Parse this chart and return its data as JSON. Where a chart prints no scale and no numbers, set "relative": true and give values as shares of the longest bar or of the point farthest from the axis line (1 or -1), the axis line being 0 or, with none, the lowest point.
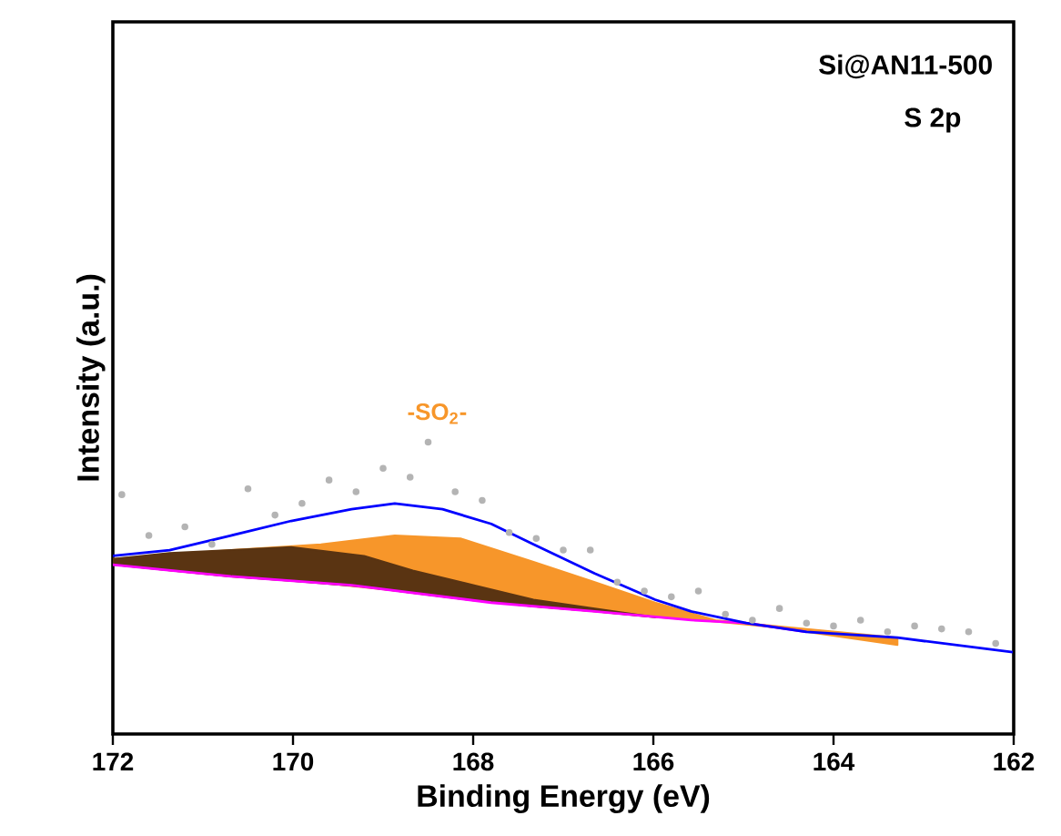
{
  "chart_data": {
    "type": "line",
    "relative": true,
    "xlabel": "Binding Energy (eV)",
    "ylabel": "Intensity (a.u.)",
    "xlim": [
      172,
      162
    ],
    "xticks": [
      172,
      170,
      168,
      166,
      164,
      162
    ],
    "grid": false,
    "tick_labels": "x",
    "annotations": [
      "Si@AN11-500",
      "S 2p",
      "-SO$_{2}$-"
    ],
    "series": [
      {
        "type": "scatter",
        "color": "#b4b4b4",
        "x": [
          171.9,
          171.6,
          171.2,
          170.9,
          170.5,
          170.2,
          169.9,
          169.6,
          169.3,
          169.0,
          168.7,
          168.5,
          168.2,
          167.9,
          167.6,
          167.3,
          167.0,
          166.7,
          166.4,
          166.1,
          165.8,
          165.5,
          165.2,
          164.9,
          164.6,
          164.3,
          164.0,
          163.7,
          163.4,
          163.1,
          162.8,
          162.5,
          162.2
        ],
        "values": [
          0.82,
          0.68,
          0.71,
          0.65,
          0.84,
          0.75,
          0.79,
          0.87,
          0.83,
          0.91,
          0.88,
          1,
          0.83,
          0.8,
          0.69,
          0.67,
          0.63,
          0.63,
          0.52,
          0.49,
          0.47,
          0.49,
          0.41,
          0.39,
          0.43,
          0.38,
          0.37,
          0.39,
          0.35,
          0.37,
          0.36,
          0.35,
          0.31
        ]
      },
      {
        "type": "area",
        "color": "#f7962a",
        "x": [
          172,
          170.69,
          169.69,
          168.87,
          168.14,
          167.33,
          166.65,
          165.98,
          165.31,
          164.64,
          163.29
        ],
        "values": [
          0.6,
          0.63,
          0.65,
          0.68,
          0.67,
          0.59,
          0.52,
          0.45,
          0.39,
          0.37,
          0.33
        ]
      },
      {
        "type": "area",
        "color": "#5a3412",
        "x": [
          172,
          171.37,
          170.69,
          170.02,
          169.21,
          168.67,
          168.0,
          167.33,
          166.65,
          165.98
        ],
        "values": [
          0.6,
          0.62,
          0.63,
          0.64,
          0.61,
          0.56,
          0.51,
          0.46,
          0.43,
          0.4
        ]
      },
      {
        "color": "#ff00ff",
        "x": [
          172,
          170.69,
          169.35,
          167.8,
          166.65,
          165.58,
          164.97,
          164.3
        ],
        "values": [
          0.58,
          0.54,
          0.51,
          0.45,
          0.42,
          0.39,
          0.38,
          0.35
        ]
      },
      {
        "color": "#0000ff",
        "x": [
          172,
          171.37,
          170.69,
          170.02,
          169.35,
          168.87,
          168.34,
          167.8,
          167.33,
          166.65,
          165.98,
          165.58,
          164.97,
          164.3,
          163.29,
          162.01
        ],
        "values": [
          0.61,
          0.63,
          0.68,
          0.73,
          0.77,
          0.79,
          0.77,
          0.72,
          0.65,
          0.55,
          0.46,
          0.42,
          0.38,
          0.35,
          0.33,
          0.28
        ]
      }
    ]
  }
}
